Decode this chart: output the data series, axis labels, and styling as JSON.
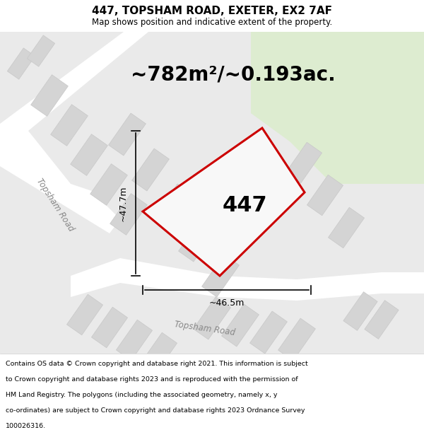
{
  "title": "447, TOPSHAM ROAD, EXETER, EX2 7AF",
  "subtitle": "Map shows position and indicative extent of the property.",
  "area_text": "~782m²/~0.193ac.",
  "label_447": "447",
  "dim_vertical": "~47.7m",
  "dim_horizontal": "~46.5m",
  "footer_lines": [
    "Contains OS data © Crown copyright and database right 2021. This information is subject",
    "to Crown copyright and database rights 2023 and is reproduced with the permission of",
    "HM Land Registry. The polygons (including the associated geometry, namely x, y",
    "co-ordinates) are subject to Crown copyright and database rights 2023 Ordnance Survey",
    "100026316."
  ],
  "map_bg": "#eaeaea",
  "road_color": "#ffffff",
  "green_color": "#ddecd0",
  "plot_color": "#cc0000",
  "building_color": "#d4d4d4",
  "building_edge": "#c8c8c8",
  "plot_outline_color_faint": "#e8b0b0",
  "road_label_color": "#888888",
  "title_fontsize": 11,
  "subtitle_fontsize": 8.5,
  "area_fontsize": 20,
  "label_fontsize": 22,
  "dim_fontsize": 9,
  "road_label_fontsize": 8.5,
  "footer_fontsize": 6.8
}
